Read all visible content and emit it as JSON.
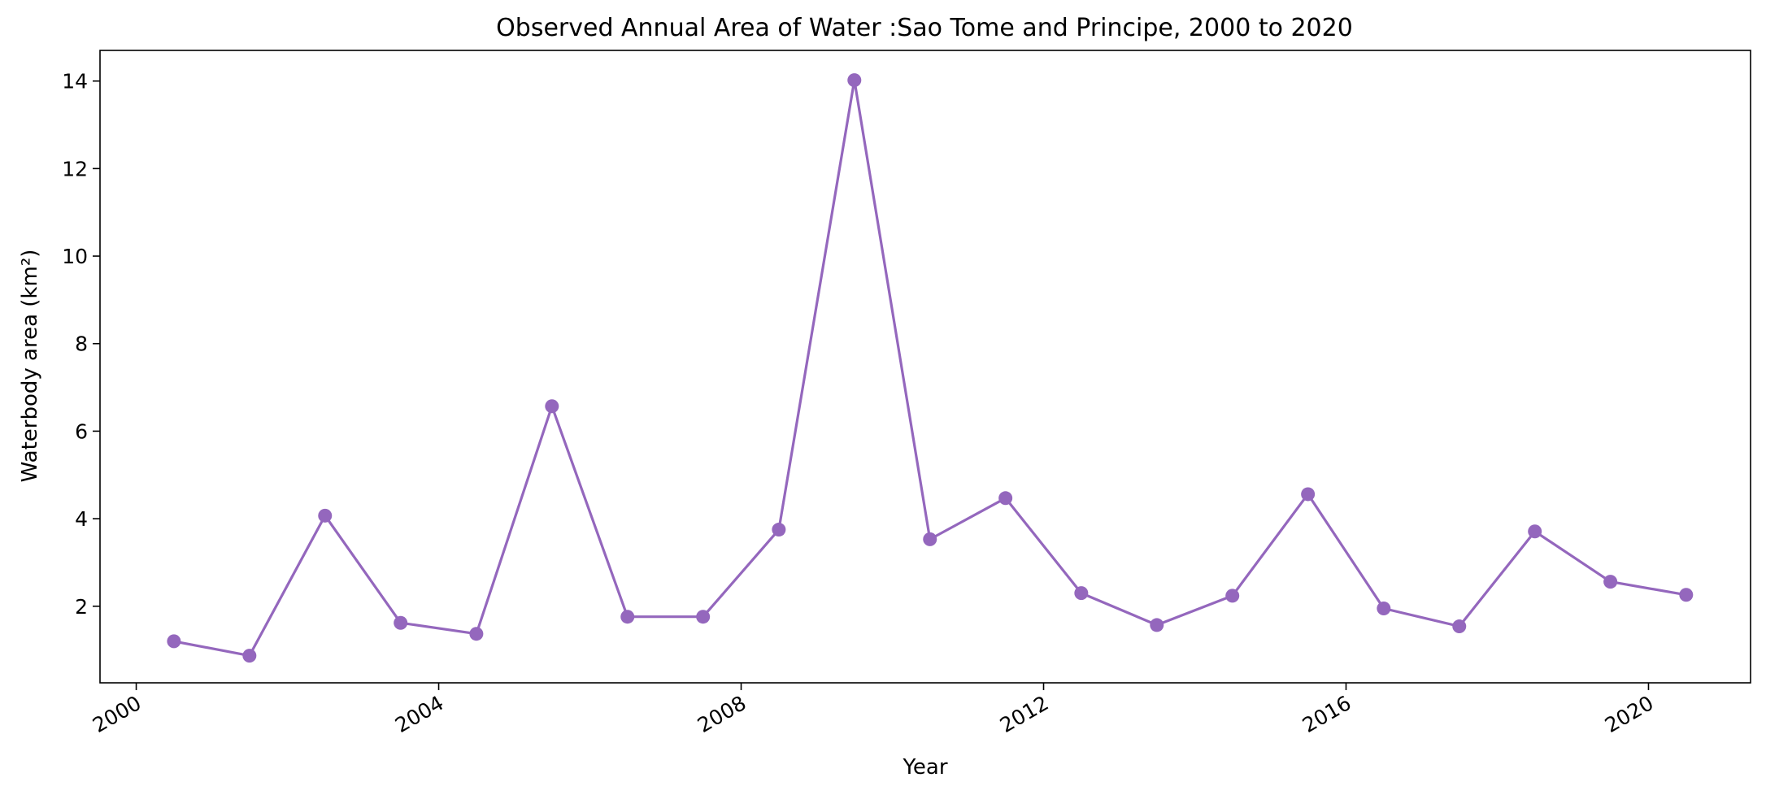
{
  "chart_data": {
    "type": "line",
    "title": "Observed Annual Area of Water :Sao Tome and Principe, 2000 to 2020",
    "xlabel": "Year",
    "ylabel": "Waterbody area (km²)",
    "x_ticks": [
      "2000",
      "2004",
      "2008",
      "2012",
      "2016",
      "2020"
    ],
    "y_ticks": [
      "2",
      "4",
      "6",
      "8",
      "10",
      "12",
      "14"
    ],
    "xlim": [
      "1999-07-10",
      "2021-05-08"
    ],
    "ylim": [
      0.25,
      14.7
    ],
    "grid": false,
    "color": "#9467bd",
    "series": [
      {
        "x": [
          "2000-07-01",
          "2001-07-01",
          "2002-07-01",
          "2003-07-01",
          "2004-07-01",
          "2005-07-01",
          "2006-07-01",
          "2007-07-01",
          "2008-07-01",
          "2009-07-01",
          "2010-07-01",
          "2011-07-01",
          "2012-07-01",
          "2013-07-01",
          "2014-07-01",
          "2015-07-01",
          "2016-07-01",
          "2017-07-01",
          "2018-07-01",
          "2019-07-01",
          "2020-07-01"
        ],
        "values": [
          1.2,
          0.87,
          4.07,
          1.62,
          1.37,
          6.57,
          1.76,
          1.76,
          3.75,
          14.02,
          3.53,
          4.47,
          2.3,
          1.57,
          2.24,
          4.56,
          1.95,
          1.54,
          3.71,
          2.56,
          2.26
        ]
      }
    ]
  }
}
